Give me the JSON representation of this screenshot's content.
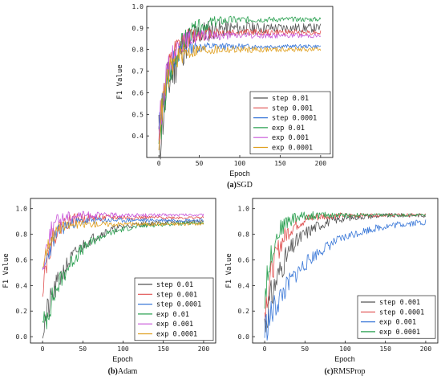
{
  "chart_data": [
    {
      "type": "line",
      "caption_letter": "(a)",
      "caption_text": "SGD",
      "xlabel": "Epoch",
      "ylabel": "F1 Value",
      "xlim": [
        -15,
        215
      ],
      "ylim": [
        0.3,
        1.0
      ],
      "xticks": [
        "0",
        "50",
        "100",
        "150",
        "200"
      ],
      "yticks": [
        "0.4",
        "0.5",
        "0.6",
        "0.7",
        "0.8",
        "0.9",
        "1.0"
      ],
      "yticks_values": [
        0.4,
        0.5,
        0.6,
        0.7,
        0.8,
        0.9,
        1.0
      ],
      "legend_position": "lower-right",
      "series": [
        {
          "name": "step 0.01",
          "color": "#555555",
          "start": 0.36,
          "plateau": 0.9,
          "rate": 0.06,
          "noise": 0.02,
          "early_noise": 0.15,
          "seed": 11
        },
        {
          "name": "step 0.001",
          "color": "#e05050",
          "start": 0.4,
          "plateau": 0.88,
          "rate": 0.08,
          "noise": 0.012,
          "early_noise": 0.08,
          "seed": 12
        },
        {
          "name": "step 0.0001",
          "color": "#3a78d8",
          "start": 0.42,
          "plateau": 0.815,
          "rate": 0.1,
          "noise": 0.008,
          "early_noise": 0.06,
          "seed": 13
        },
        {
          "name": "exp 0.01",
          "color": "#2aa050",
          "start": 0.38,
          "plateau": 0.94,
          "rate": 0.055,
          "noise": 0.01,
          "early_noise": 0.09,
          "seed": 14
        },
        {
          "name": "exp 0.001",
          "color": "#c855d8",
          "start": 0.42,
          "plateau": 0.865,
          "rate": 0.09,
          "noise": 0.01,
          "early_noise": 0.07,
          "seed": 15
        },
        {
          "name": "exp 0.0001",
          "color": "#e0a020",
          "start": 0.4,
          "plateau": 0.8,
          "rate": 0.1,
          "noise": 0.01,
          "early_noise": 0.07,
          "seed": 16
        }
      ]
    },
    {
      "type": "line",
      "caption_letter": "(b)",
      "caption_text": "Adam",
      "xlabel": "Epoch",
      "ylabel": "F1 Value",
      "xlim": [
        -15,
        215
      ],
      "ylim": [
        -0.05,
        1.08
      ],
      "xticks": [
        "0",
        "50",
        "100",
        "150",
        "200"
      ],
      "yticks": [
        "0.0",
        "0.2",
        "0.4",
        "0.6",
        "0.8",
        "1.0"
      ],
      "yticks_values": [
        0.0,
        0.2,
        0.4,
        0.6,
        0.8,
        1.0
      ],
      "legend_position": "lower-right",
      "series": [
        {
          "name": "step 0.01",
          "color": "#555555",
          "start": 0.05,
          "plateau": 0.9,
          "rate": 0.03,
          "noise": 0.015,
          "early_noise": 0.12,
          "seed": 21
        },
        {
          "name": "step 0.001",
          "color": "#e05050",
          "start": 0.4,
          "plateau": 0.93,
          "rate": 0.09,
          "noise": 0.01,
          "early_noise": 0.1,
          "seed": 22
        },
        {
          "name": "step 0.0001",
          "color": "#3a78d8",
          "start": 0.45,
          "plateau": 0.91,
          "rate": 0.08,
          "noise": 0.012,
          "early_noise": 0.08,
          "seed": 23
        },
        {
          "name": "exp 0.01",
          "color": "#2aa050",
          "start": 0.05,
          "plateau": 0.89,
          "rate": 0.028,
          "noise": 0.012,
          "early_noise": 0.12,
          "seed": 24
        },
        {
          "name": "exp 0.001",
          "color": "#c855d8",
          "start": 0.5,
          "plateau": 0.95,
          "rate": 0.12,
          "noise": 0.01,
          "early_noise": 0.08,
          "seed": 25
        },
        {
          "name": "exp 0.0001",
          "color": "#e0a020",
          "start": 0.55,
          "plateau": 0.88,
          "rate": 0.1,
          "noise": 0.012,
          "early_noise": 0.06,
          "seed": 26
        }
      ]
    },
    {
      "type": "line",
      "caption_letter": "(c)",
      "caption_text": "RMSProp",
      "xlabel": "Epoch",
      "ylabel": "F1 Value",
      "xlim": [
        -15,
        215
      ],
      "ylim": [
        -0.05,
        1.08
      ],
      "xticks": [
        "0",
        "50",
        "100",
        "150",
        "200"
      ],
      "yticks": [
        "0.0",
        "0.2",
        "0.4",
        "0.6",
        "0.8",
        "1.0"
      ],
      "yticks_values": [
        0.0,
        0.2,
        0.4,
        0.6,
        0.8,
        1.0
      ],
      "legend_position": "lower-right",
      "series": [
        {
          "name": "step 0.001",
          "color": "#555555",
          "start": 0.1,
          "plateau": 0.95,
          "rate": 0.035,
          "noise": 0.015,
          "early_noise": 0.15,
          "seed": 31
        },
        {
          "name": "step 0.0001",
          "color": "#e05050",
          "start": 0.2,
          "plateau": 0.95,
          "rate": 0.06,
          "noise": 0.01,
          "early_noise": 0.12,
          "seed": 32
        },
        {
          "name": "exp 0.001",
          "color": "#3a78d8",
          "start": 0.05,
          "plateau": 0.92,
          "rate": 0.018,
          "noise": 0.025,
          "early_noise": 0.12,
          "seed": 33
        },
        {
          "name": "exp 0.0001",
          "color": "#2aa050",
          "start": 0.3,
          "plateau": 0.95,
          "rate": 0.09,
          "noise": 0.01,
          "early_noise": 0.1,
          "seed": 34
        }
      ]
    }
  ]
}
